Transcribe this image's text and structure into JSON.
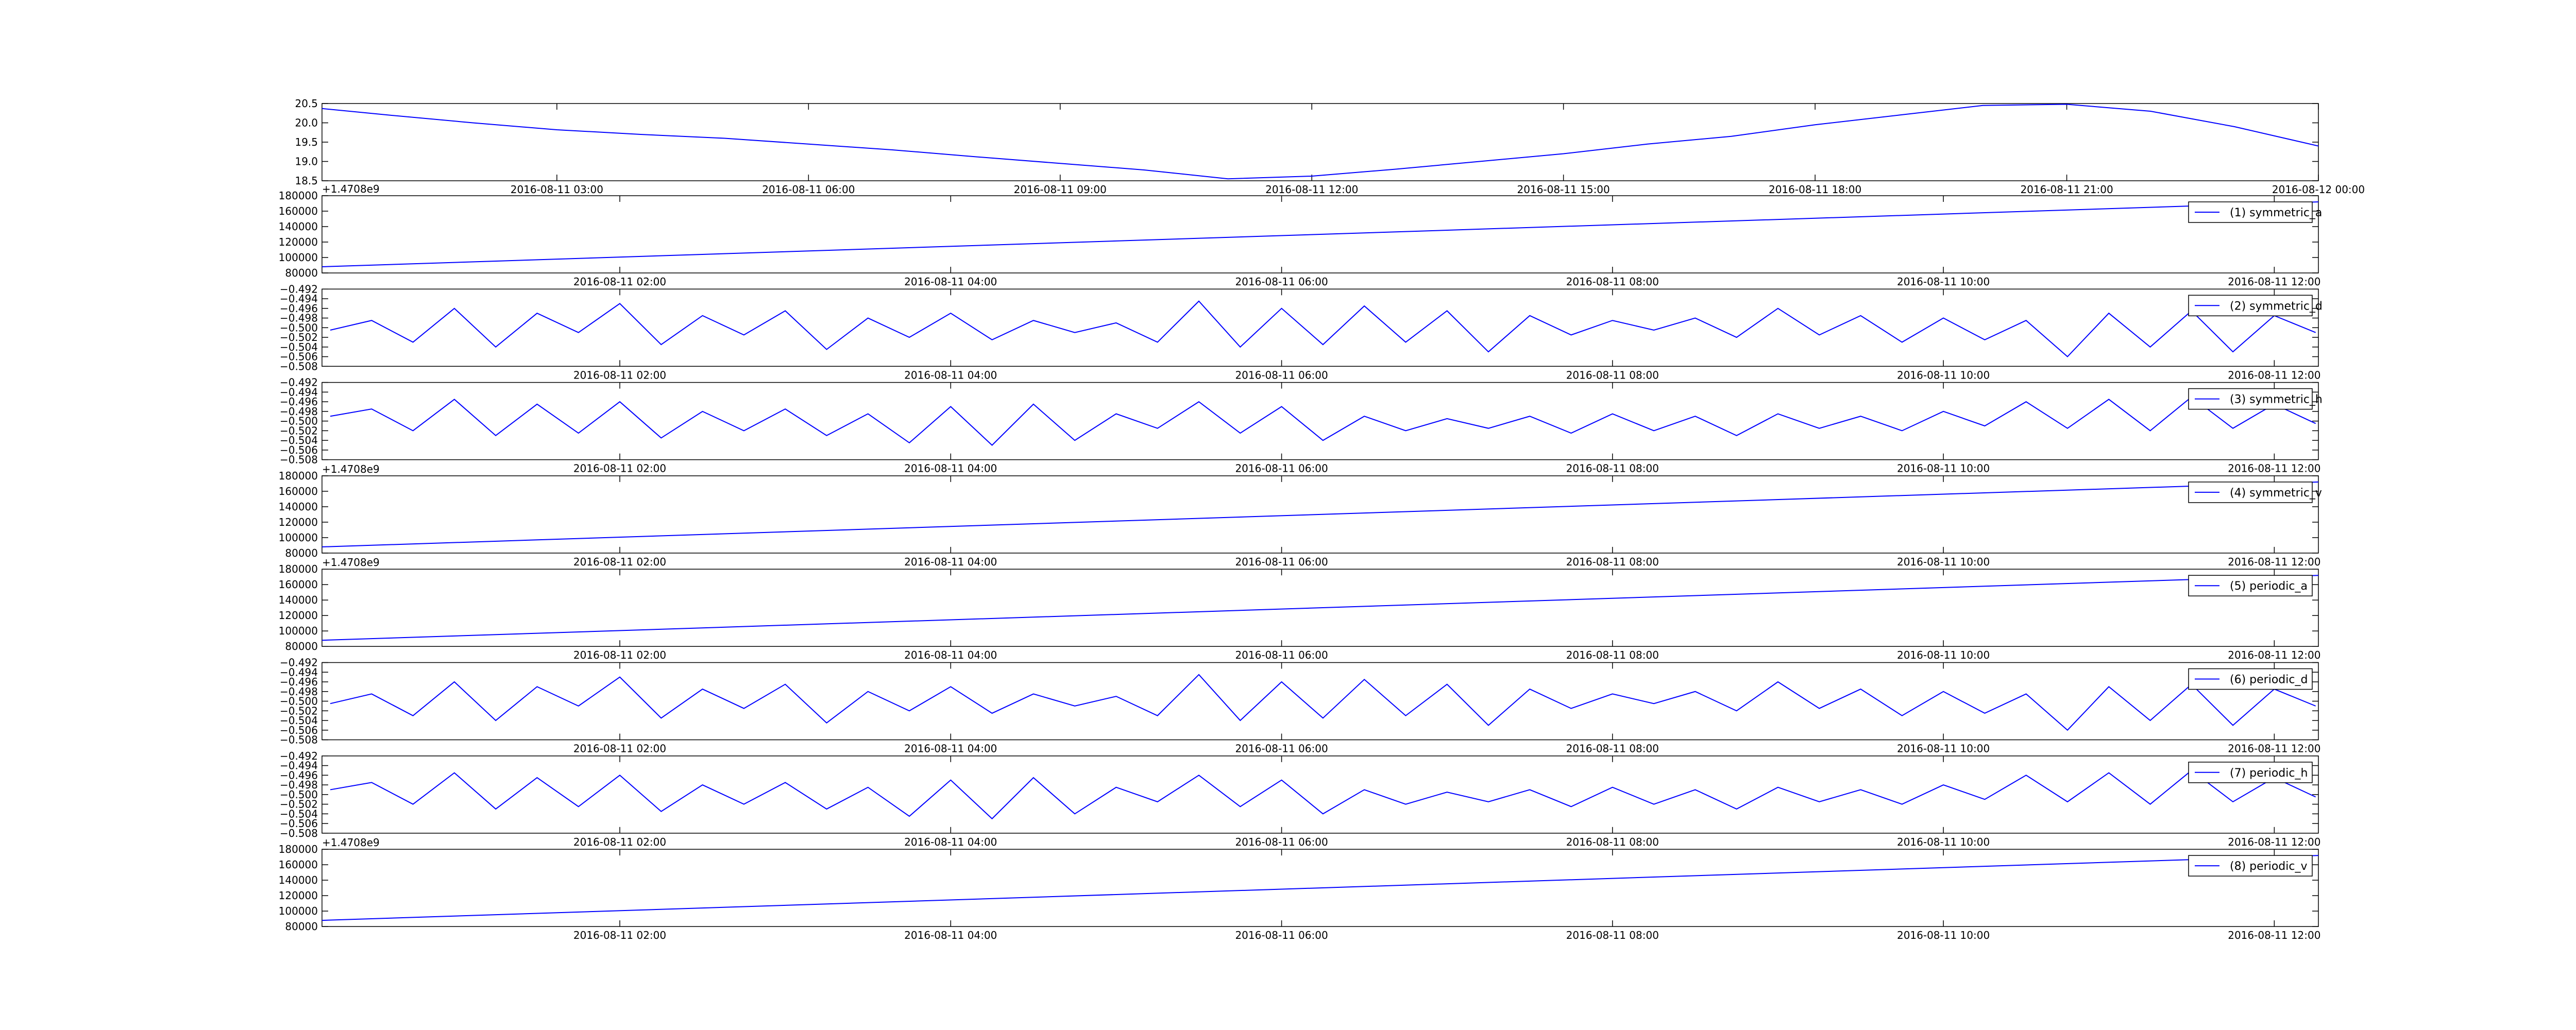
{
  "chart_data": [
    {
      "type": "line",
      "x": [
        "2016-08-11 00:12",
        "2016-08-11 01:00",
        "2016-08-11 02:00",
        "2016-08-11 03:00",
        "2016-08-11 04:00",
        "2016-08-11 05:00",
        "2016-08-11 06:00",
        "2016-08-11 07:00",
        "2016-08-11 08:00",
        "2016-08-11 09:00",
        "2016-08-11 10:00",
        "2016-08-11 11:00",
        "2016-08-11 12:00",
        "2016-08-11 13:00",
        "2016-08-11 14:00",
        "2016-08-11 15:00",
        "2016-08-11 16:00",
        "2016-08-11 17:00",
        "2016-08-11 18:00",
        "2016-08-11 19:00",
        "2016-08-11 20:00",
        "2016-08-11 21:00",
        "2016-08-11 22:00",
        "2016-08-11 23:00",
        "2016-08-12 00:00"
      ],
      "series": [
        {
          "color": "#0000ff",
          "values": [
            20.37,
            20.2,
            20.0,
            19.82,
            19.7,
            19.6,
            19.45,
            19.3,
            19.12,
            18.95,
            18.78,
            18.55,
            18.62,
            18.8,
            19.0,
            19.2,
            19.45,
            19.65,
            19.95,
            20.2,
            20.45,
            20.48,
            20.3,
            19.9,
            19.4
          ]
        }
      ],
      "xlim": [
        "2016-08-11 00:12",
        "2016-08-12 00:00"
      ],
      "xticks": [
        "2016-08-11 03:00",
        "2016-08-11 06:00",
        "2016-08-11 09:00",
        "2016-08-11 12:00",
        "2016-08-11 15:00",
        "2016-08-11 18:00",
        "2016-08-11 21:00",
        "2016-08-12 00:00"
      ],
      "ylim": [
        18.5,
        20.5
      ],
      "yticks": [
        18.5,
        {
          "value": 19,
          "label": "19.0"
        },
        19.5,
        {
          "value": 20,
          "label": "20.0"
        },
        20.5
      ],
      "grid": false
    },
    {
      "type": "line",
      "x": [
        "2016-08-11 00:12",
        "2016-08-11 12:16"
      ],
      "series": [
        {
          "name": "(1) symmetric_a",
          "color": "#0000ff",
          "values": [
            88000,
            172000
          ]
        }
      ],
      "xlim": [
        "2016-08-11 00:12",
        "2016-08-11 12:16"
      ],
      "xticks": [
        "2016-08-11 02:00",
        "2016-08-11 04:00",
        "2016-08-11 06:00",
        "2016-08-11 08:00",
        "2016-08-11 10:00",
        "2016-08-11 12:00"
      ],
      "ylim": [
        80000,
        180000
      ],
      "yticks": [
        80000,
        100000,
        120000,
        140000,
        160000,
        180000
      ],
      "y_offset_text": "+1.4708e9",
      "legend": "upper right",
      "grid": false
    },
    {
      "type": "line",
      "x": [
        "2016-08-11 00:15",
        "2016-08-11 00:30",
        "2016-08-11 00:45",
        "2016-08-11 01:00",
        "2016-08-11 01:15",
        "2016-08-11 01:30",
        "2016-08-11 01:45",
        "2016-08-11 02:00",
        "2016-08-11 02:15",
        "2016-08-11 02:30",
        "2016-08-11 02:45",
        "2016-08-11 03:00",
        "2016-08-11 03:15",
        "2016-08-11 03:30",
        "2016-08-11 03:45",
        "2016-08-11 04:00",
        "2016-08-11 04:15",
        "2016-08-11 04:30",
        "2016-08-11 04:45",
        "2016-08-11 05:00",
        "2016-08-11 05:15",
        "2016-08-11 05:30",
        "2016-08-11 05:45",
        "2016-08-11 06:00",
        "2016-08-11 06:15",
        "2016-08-11 06:30",
        "2016-08-11 06:45",
        "2016-08-11 07:00",
        "2016-08-11 07:15",
        "2016-08-11 07:30",
        "2016-08-11 07:45",
        "2016-08-11 08:00",
        "2016-08-11 08:15",
        "2016-08-11 08:30",
        "2016-08-11 08:45",
        "2016-08-11 09:00",
        "2016-08-11 09:15",
        "2016-08-11 09:30",
        "2016-08-11 09:45",
        "2016-08-11 10:00",
        "2016-08-11 10:15",
        "2016-08-11 10:30",
        "2016-08-11 10:45",
        "2016-08-11 11:00",
        "2016-08-11 11:15",
        "2016-08-11 11:30",
        "2016-08-11 11:45",
        "2016-08-11 12:00",
        "2016-08-11 12:15"
      ],
      "series": [
        {
          "name": "(2) symmetric_d",
          "color": "#0000ff",
          "values": [
            -0.5005,
            -0.4985,
            -0.503,
            -0.496,
            -0.504,
            -0.497,
            -0.501,
            -0.495,
            -0.5035,
            -0.4975,
            -0.5015,
            -0.4965,
            -0.5045,
            -0.498,
            -0.502,
            -0.497,
            -0.5025,
            -0.4985,
            -0.501,
            -0.499,
            -0.503,
            -0.4945,
            -0.504,
            -0.496,
            -0.5035,
            -0.4955,
            -0.503,
            -0.4965,
            -0.505,
            -0.4975,
            -0.5015,
            -0.4985,
            -0.5005,
            -0.498,
            -0.502,
            -0.496,
            -0.5015,
            -0.4975,
            -0.503,
            -0.498,
            -0.5025,
            -0.4985,
            -0.506,
            -0.497,
            -0.504,
            -0.4965,
            -0.505,
            -0.4975,
            -0.501
          ]
        }
      ],
      "xlim": [
        "2016-08-11 00:12",
        "2016-08-11 12:16"
      ],
      "xticks": [
        "2016-08-11 02:00",
        "2016-08-11 04:00",
        "2016-08-11 06:00",
        "2016-08-11 08:00",
        "2016-08-11 10:00",
        "2016-08-11 12:00"
      ],
      "ylim": [
        -0.508,
        -0.492
      ],
      "yticks": [
        {
          "value": -0.508,
          "label": "−0.508"
        },
        {
          "value": -0.506,
          "label": "−0.506"
        },
        {
          "value": -0.504,
          "label": "−0.504"
        },
        {
          "value": -0.502,
          "label": "−0.502"
        },
        {
          "value": -0.5,
          "label": "−0.500"
        },
        {
          "value": -0.498,
          "label": "−0.498"
        },
        {
          "value": -0.496,
          "label": "−0.496"
        },
        {
          "value": -0.494,
          "label": "−0.494"
        },
        {
          "value": -0.492,
          "label": "−0.492"
        }
      ],
      "legend": "upper right",
      "grid": false
    },
    {
      "type": "line",
      "x": [
        "2016-08-11 00:15",
        "2016-08-11 00:30",
        "2016-08-11 00:45",
        "2016-08-11 01:00",
        "2016-08-11 01:15",
        "2016-08-11 01:30",
        "2016-08-11 01:45",
        "2016-08-11 02:00",
        "2016-08-11 02:15",
        "2016-08-11 02:30",
        "2016-08-11 02:45",
        "2016-08-11 03:00",
        "2016-08-11 03:15",
        "2016-08-11 03:30",
        "2016-08-11 03:45",
        "2016-08-11 04:00",
        "2016-08-11 04:15",
        "2016-08-11 04:30",
        "2016-08-11 04:45",
        "2016-08-11 05:00",
        "2016-08-11 05:15",
        "2016-08-11 05:30",
        "2016-08-11 05:45",
        "2016-08-11 06:00",
        "2016-08-11 06:15",
        "2016-08-11 06:30",
        "2016-08-11 06:45",
        "2016-08-11 07:00",
        "2016-08-11 07:15",
        "2016-08-11 07:30",
        "2016-08-11 07:45",
        "2016-08-11 08:00",
        "2016-08-11 08:15",
        "2016-08-11 08:30",
        "2016-08-11 08:45",
        "2016-08-11 09:00",
        "2016-08-11 09:15",
        "2016-08-11 09:30",
        "2016-08-11 09:45",
        "2016-08-11 10:00",
        "2016-08-11 10:15",
        "2016-08-11 10:30",
        "2016-08-11 10:45",
        "2016-08-11 11:00",
        "2016-08-11 11:15",
        "2016-08-11 11:30",
        "2016-08-11 11:45",
        "2016-08-11 12:00",
        "2016-08-11 12:15"
      ],
      "series": [
        {
          "name": "(3) symmetric_h",
          "color": "#0000ff",
          "values": [
            -0.499,
            -0.4975,
            -0.502,
            -0.4955,
            -0.503,
            -0.4965,
            -0.5025,
            -0.496,
            -0.5035,
            -0.498,
            -0.502,
            -0.4975,
            -0.503,
            -0.4985,
            -0.5045,
            -0.497,
            -0.505,
            -0.4965,
            -0.504,
            -0.4985,
            -0.5015,
            -0.496,
            -0.5025,
            -0.497,
            -0.504,
            -0.499,
            -0.502,
            -0.4995,
            -0.5015,
            -0.499,
            -0.5025,
            -0.4985,
            -0.502,
            -0.499,
            -0.503,
            -0.4985,
            -0.5015,
            -0.499,
            -0.502,
            -0.498,
            -0.501,
            -0.496,
            -0.5015,
            -0.4955,
            -0.502,
            -0.495,
            -0.5015,
            -0.4965,
            -0.5005
          ]
        }
      ],
      "xlim": [
        "2016-08-11 00:12",
        "2016-08-11 12:16"
      ],
      "xticks": [
        "2016-08-11 02:00",
        "2016-08-11 04:00",
        "2016-08-11 06:00",
        "2016-08-11 08:00",
        "2016-08-11 10:00",
        "2016-08-11 12:00"
      ],
      "ylim": [
        -0.508,
        -0.492
      ],
      "yticks": [
        {
          "value": -0.508,
          "label": "−0.508"
        },
        {
          "value": -0.506,
          "label": "−0.506"
        },
        {
          "value": -0.504,
          "label": "−0.504"
        },
        {
          "value": -0.502,
          "label": "−0.502"
        },
        {
          "value": -0.5,
          "label": "−0.500"
        },
        {
          "value": -0.498,
          "label": "−0.498"
        },
        {
          "value": -0.496,
          "label": "−0.496"
        },
        {
          "value": -0.494,
          "label": "−0.494"
        },
        {
          "value": -0.492,
          "label": "−0.492"
        }
      ],
      "legend": "upper right",
      "grid": false
    },
    {
      "type": "line",
      "x": [
        "2016-08-11 00:12",
        "2016-08-11 12:16"
      ],
      "series": [
        {
          "name": "(4) symmetric_v",
          "color": "#0000ff",
          "values": [
            88000,
            172000
          ]
        }
      ],
      "xlim": [
        "2016-08-11 00:12",
        "2016-08-11 12:16"
      ],
      "xticks": [
        "2016-08-11 02:00",
        "2016-08-11 04:00",
        "2016-08-11 06:00",
        "2016-08-11 08:00",
        "2016-08-11 10:00",
        "2016-08-11 12:00"
      ],
      "ylim": [
        80000,
        180000
      ],
      "yticks": [
        80000,
        100000,
        120000,
        140000,
        160000,
        180000
      ],
      "y_offset_text": "+1.4708e9",
      "legend": "upper right",
      "grid": false
    },
    {
      "type": "line",
      "x": [
        "2016-08-11 00:12",
        "2016-08-11 12:16"
      ],
      "series": [
        {
          "name": "(5) periodic_a",
          "color": "#0000ff",
          "values": [
            88000,
            172000
          ]
        }
      ],
      "xlim": [
        "2016-08-11 00:12",
        "2016-08-11 12:16"
      ],
      "xticks": [
        "2016-08-11 02:00",
        "2016-08-11 04:00",
        "2016-08-11 06:00",
        "2016-08-11 08:00",
        "2016-08-11 10:00",
        "2016-08-11 12:00"
      ],
      "ylim": [
        80000,
        180000
      ],
      "yticks": [
        80000,
        100000,
        120000,
        140000,
        160000,
        180000
      ],
      "y_offset_text": "+1.4708e9",
      "legend": "upper right",
      "grid": false
    },
    {
      "type": "line",
      "x": [
        "2016-08-11 00:15",
        "2016-08-11 00:30",
        "2016-08-11 00:45",
        "2016-08-11 01:00",
        "2016-08-11 01:15",
        "2016-08-11 01:30",
        "2016-08-11 01:45",
        "2016-08-11 02:00",
        "2016-08-11 02:15",
        "2016-08-11 02:30",
        "2016-08-11 02:45",
        "2016-08-11 03:00",
        "2016-08-11 03:15",
        "2016-08-11 03:30",
        "2016-08-11 03:45",
        "2016-08-11 04:00",
        "2016-08-11 04:15",
        "2016-08-11 04:30",
        "2016-08-11 04:45",
        "2016-08-11 05:00",
        "2016-08-11 05:15",
        "2016-08-11 05:30",
        "2016-08-11 05:45",
        "2016-08-11 06:00",
        "2016-08-11 06:15",
        "2016-08-11 06:30",
        "2016-08-11 06:45",
        "2016-08-11 07:00",
        "2016-08-11 07:15",
        "2016-08-11 07:30",
        "2016-08-11 07:45",
        "2016-08-11 08:00",
        "2016-08-11 08:15",
        "2016-08-11 08:30",
        "2016-08-11 08:45",
        "2016-08-11 09:00",
        "2016-08-11 09:15",
        "2016-08-11 09:30",
        "2016-08-11 09:45",
        "2016-08-11 10:00",
        "2016-08-11 10:15",
        "2016-08-11 10:30",
        "2016-08-11 10:45",
        "2016-08-11 11:00",
        "2016-08-11 11:15",
        "2016-08-11 11:30",
        "2016-08-11 11:45",
        "2016-08-11 12:00",
        "2016-08-11 12:15"
      ],
      "series": [
        {
          "name": "(6) periodic_d",
          "color": "#0000ff",
          "values": [
            -0.5005,
            -0.4985,
            -0.503,
            -0.496,
            -0.504,
            -0.497,
            -0.501,
            -0.495,
            -0.5035,
            -0.4975,
            -0.5015,
            -0.4965,
            -0.5045,
            -0.498,
            -0.502,
            -0.497,
            -0.5025,
            -0.4985,
            -0.501,
            -0.499,
            -0.503,
            -0.4945,
            -0.504,
            -0.496,
            -0.5035,
            -0.4955,
            -0.503,
            -0.4965,
            -0.505,
            -0.4975,
            -0.5015,
            -0.4985,
            -0.5005,
            -0.498,
            -0.502,
            -0.496,
            -0.5015,
            -0.4975,
            -0.503,
            -0.498,
            -0.5025,
            -0.4985,
            -0.506,
            -0.497,
            -0.504,
            -0.4965,
            -0.505,
            -0.4975,
            -0.501
          ]
        }
      ],
      "xlim": [
        "2016-08-11 00:12",
        "2016-08-11 12:16"
      ],
      "xticks": [
        "2016-08-11 02:00",
        "2016-08-11 04:00",
        "2016-08-11 06:00",
        "2016-08-11 08:00",
        "2016-08-11 10:00",
        "2016-08-11 12:00"
      ],
      "ylim": [
        -0.508,
        -0.492
      ],
      "yticks": [
        {
          "value": -0.508,
          "label": "−0.508"
        },
        {
          "value": -0.506,
          "label": "−0.506"
        },
        {
          "value": -0.504,
          "label": "−0.504"
        },
        {
          "value": -0.502,
          "label": "−0.502"
        },
        {
          "value": -0.5,
          "label": "−0.500"
        },
        {
          "value": -0.498,
          "label": "−0.498"
        },
        {
          "value": -0.496,
          "label": "−0.496"
        },
        {
          "value": -0.494,
          "label": "−0.494"
        },
        {
          "value": -0.492,
          "label": "−0.492"
        }
      ],
      "legend": "upper right",
      "grid": false
    },
    {
      "type": "line",
      "x": [
        "2016-08-11 00:15",
        "2016-08-11 00:30",
        "2016-08-11 00:45",
        "2016-08-11 01:00",
        "2016-08-11 01:15",
        "2016-08-11 01:30",
        "2016-08-11 01:45",
        "2016-08-11 02:00",
        "2016-08-11 02:15",
        "2016-08-11 02:30",
        "2016-08-11 02:45",
        "2016-08-11 03:00",
        "2016-08-11 03:15",
        "2016-08-11 03:30",
        "2016-08-11 03:45",
        "2016-08-11 04:00",
        "2016-08-11 04:15",
        "2016-08-11 04:30",
        "2016-08-11 04:45",
        "2016-08-11 05:00",
        "2016-08-11 05:15",
        "2016-08-11 05:30",
        "2016-08-11 05:45",
        "2016-08-11 06:00",
        "2016-08-11 06:15",
        "2016-08-11 06:30",
        "2016-08-11 06:45",
        "2016-08-11 07:00",
        "2016-08-11 07:15",
        "2016-08-11 07:30",
        "2016-08-11 07:45",
        "2016-08-11 08:00",
        "2016-08-11 08:15",
        "2016-08-11 08:30",
        "2016-08-11 08:45",
        "2016-08-11 09:00",
        "2016-08-11 09:15",
        "2016-08-11 09:30",
        "2016-08-11 09:45",
        "2016-08-11 10:00",
        "2016-08-11 10:15",
        "2016-08-11 10:30",
        "2016-08-11 10:45",
        "2016-08-11 11:00",
        "2016-08-11 11:15",
        "2016-08-11 11:30",
        "2016-08-11 11:45",
        "2016-08-11 12:00",
        "2016-08-11 12:15"
      ],
      "series": [
        {
          "name": "(7) periodic_h",
          "color": "#0000ff",
          "values": [
            -0.499,
            -0.4975,
            -0.502,
            -0.4955,
            -0.503,
            -0.4965,
            -0.5025,
            -0.496,
            -0.5035,
            -0.498,
            -0.502,
            -0.4975,
            -0.503,
            -0.4985,
            -0.5045,
            -0.497,
            -0.505,
            -0.4965,
            -0.504,
            -0.4985,
            -0.5015,
            -0.496,
            -0.5025,
            -0.497,
            -0.504,
            -0.499,
            -0.502,
            -0.4995,
            -0.5015,
            -0.499,
            -0.5025,
            -0.4985,
            -0.502,
            -0.499,
            -0.503,
            -0.4985,
            -0.5015,
            -0.499,
            -0.502,
            -0.498,
            -0.501,
            -0.496,
            -0.5015,
            -0.4955,
            -0.502,
            -0.495,
            -0.5015,
            -0.4965,
            -0.5005
          ]
        }
      ],
      "xlim": [
        "2016-08-11 00:12",
        "2016-08-11 12:16"
      ],
      "xticks": [
        "2016-08-11 02:00",
        "2016-08-11 04:00",
        "2016-08-11 06:00",
        "2016-08-11 08:00",
        "2016-08-11 10:00",
        "2016-08-11 12:00"
      ],
      "ylim": [
        -0.508,
        -0.492
      ],
      "yticks": [
        {
          "value": -0.508,
          "label": "−0.508"
        },
        {
          "value": -0.506,
          "label": "−0.506"
        },
        {
          "value": -0.504,
          "label": "−0.504"
        },
        {
          "value": -0.502,
          "label": "−0.502"
        },
        {
          "value": -0.5,
          "label": "−0.500"
        },
        {
          "value": -0.498,
          "label": "−0.498"
        },
        {
          "value": -0.496,
          "label": "−0.496"
        },
        {
          "value": -0.494,
          "label": "−0.494"
        },
        {
          "value": -0.492,
          "label": "−0.492"
        }
      ],
      "legend": "upper right",
      "grid": false
    },
    {
      "type": "line",
      "x": [
        "2016-08-11 00:12",
        "2016-08-11 12:16"
      ],
      "series": [
        {
          "name": "(8) periodic_v",
          "color": "#0000ff",
          "values": [
            88000,
            172000
          ]
        }
      ],
      "xlim": [
        "2016-08-11 00:12",
        "2016-08-11 12:16"
      ],
      "xticks": [
        "2016-08-11 02:00",
        "2016-08-11 04:00",
        "2016-08-11 06:00",
        "2016-08-11 08:00",
        "2016-08-11 10:00",
        "2016-08-11 12:00"
      ],
      "ylim": [
        80000,
        180000
      ],
      "yticks": [
        80000,
        100000,
        120000,
        140000,
        160000,
        180000
      ],
      "y_offset_text": "+1.4708e9",
      "legend": "upper right",
      "grid": false
    }
  ]
}
